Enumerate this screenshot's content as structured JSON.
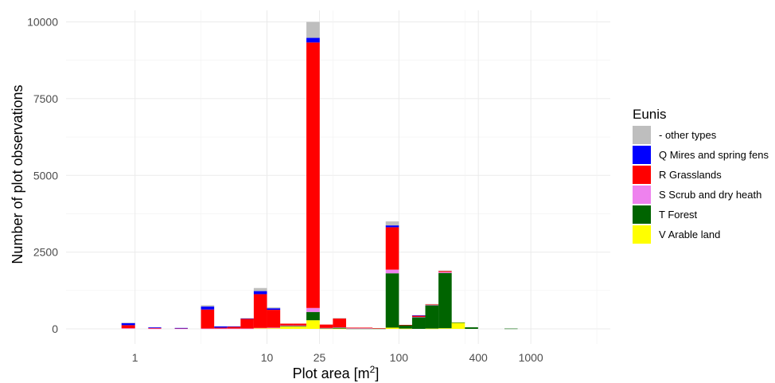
{
  "chart_data": {
    "type": "bar",
    "stacked": true,
    "x_scale": "log10",
    "xlabel": "Plot area [m",
    "xlabel_sup": "2",
    "xlabel_end": "]",
    "ylabel": "Number of plot observations",
    "xlim": [
      0.3,
      4000
    ],
    "ylim": [
      0,
      10000
    ],
    "x_ticks": [
      {
        "value": 1,
        "label": "1"
      },
      {
        "value": 10,
        "label": "10"
      },
      {
        "value": 25,
        "label": "25"
      },
      {
        "value": 100,
        "label": "100"
      },
      {
        "value": 400,
        "label": "400"
      },
      {
        "value": 1000,
        "label": "1000"
      }
    ],
    "x_minor_ticks": [
      3.16,
      31.6,
      316,
      3162
    ],
    "y_ticks": [
      {
        "value": 0,
        "label": "0"
      },
      {
        "value": 2500,
        "label": "2500"
      },
      {
        "value": 5000,
        "label": "5000"
      },
      {
        "value": 7500,
        "label": "7500"
      },
      {
        "value": 10000,
        "label": "10000"
      }
    ],
    "grid": true,
    "legend_position": "right",
    "legend_title": "Eunis",
    "series": [
      {
        "name": "- other types",
        "color": "#bebebe"
      },
      {
        "name": "Q Mires and spring fens",
        "color": "#0000ff"
      },
      {
        "name": "R Grasslands",
        "color": "#ff0000"
      },
      {
        "name": "S Scrub and dry heath",
        "color": "#ee82ee"
      },
      {
        "name": "T Forest",
        "color": "#006400"
      },
      {
        "name": "V Arable land",
        "color": "#ffff00"
      }
    ],
    "stack_order_bottom_to_top": [
      "V Arable land",
      "T Forest",
      "S Scrub and dry heath",
      "R Grasslands",
      "Q Mires and spring fens",
      "- other types"
    ],
    "bars": [
      {
        "x_from": 0.79,
        "x_to": 1.0,
        "values": {
          "V Arable land": 0,
          "T Forest": 0,
          "S Scrub and dry heath": 20,
          "R Grasslands": 100,
          "Q Mires and spring fens": 70,
          "- other types": 10
        }
      },
      {
        "x_from": 1.26,
        "x_to": 1.58,
        "values": {
          "V Arable land": 0,
          "T Forest": 0,
          "S Scrub and dry heath": 10,
          "R Grasslands": 20,
          "Q Mires and spring fens": 20,
          "- other types": 0
        }
      },
      {
        "x_from": 2.0,
        "x_to": 2.51,
        "values": {
          "V Arable land": 0,
          "T Forest": 0,
          "S Scrub and dry heath": 10,
          "R Grasslands": 10,
          "Q Mires and spring fens": 10,
          "- other types": 0
        }
      },
      {
        "x_from": 3.16,
        "x_to": 3.98,
        "values": {
          "V Arable land": 0,
          "T Forest": 0,
          "S Scrub and dry heath": 10,
          "R Grasslands": 620,
          "Q Mires and spring fens": 100,
          "- other types": 40
        }
      },
      {
        "x_from": 3.98,
        "x_to": 5.01,
        "values": {
          "V Arable land": 0,
          "T Forest": 0,
          "S Scrub and dry heath": 10,
          "R Grasslands": 30,
          "Q Mires and spring fens": 40,
          "- other types": 0
        }
      },
      {
        "x_from": 5.01,
        "x_to": 6.31,
        "values": {
          "V Arable land": 0,
          "T Forest": 0,
          "S Scrub and dry heath": 10,
          "R Grasslands": 60,
          "Q Mires and spring fens": 10,
          "- other types": 0
        }
      },
      {
        "x_from": 6.31,
        "x_to": 7.94,
        "values": {
          "V Arable land": 0,
          "T Forest": 0,
          "S Scrub and dry heath": 10,
          "R Grasslands": 320,
          "Q Mires and spring fens": 10,
          "- other types": 10
        }
      },
      {
        "x_from": 7.94,
        "x_to": 10.0,
        "values": {
          "V Arable land": 20,
          "T Forest": 0,
          "S Scrub and dry heath": 10,
          "R Grasslands": 1100,
          "Q Mires and spring fens": 100,
          "- other types": 100
        }
      },
      {
        "x_from": 10.0,
        "x_to": 12.6,
        "values": {
          "V Arable land": 20,
          "T Forest": 0,
          "S Scrub and dry heath": 20,
          "R Grasslands": 580,
          "Q Mires and spring fens": 50,
          "- other types": 30
        }
      },
      {
        "x_from": 12.6,
        "x_to": 15.8,
        "values": {
          "V Arable land": 80,
          "T Forest": 10,
          "S Scrub and dry heath": 20,
          "R Grasslands": 60,
          "Q Mires and spring fens": 0,
          "- other types": 0
        }
      },
      {
        "x_from": 15.8,
        "x_to": 19.9,
        "values": {
          "V Arable land": 80,
          "T Forest": 10,
          "S Scrub and dry heath": 20,
          "R Grasslands": 60,
          "Q Mires and spring fens": 0,
          "- other types": 0
        }
      },
      {
        "x_from": 19.9,
        "x_to": 25.1,
        "values": {
          "V Arable land": 280,
          "T Forest": 270,
          "S Scrub and dry heath": 130,
          "R Grasslands": 8650,
          "Q Mires and spring fens": 150,
          "- other types": 520
        }
      },
      {
        "x_from": 25.1,
        "x_to": 31.6,
        "values": {
          "V Arable land": 10,
          "T Forest": 10,
          "S Scrub and dry heath": 10,
          "R Grasslands": 110,
          "Q Mires and spring fens": 0,
          "- other types": 0
        }
      },
      {
        "x_from": 31.6,
        "x_to": 39.8,
        "values": {
          "V Arable land": 10,
          "T Forest": 30,
          "S Scrub and dry heath": 10,
          "R Grasslands": 290,
          "Q Mires and spring fens": 0,
          "- other types": 10
        }
      },
      {
        "x_from": 39.8,
        "x_to": 50.1,
        "values": {
          "V Arable land": 0,
          "T Forest": 10,
          "S Scrub and dry heath": 10,
          "R Grasslands": 20,
          "Q Mires and spring fens": 0,
          "- other types": 0
        }
      },
      {
        "x_from": 50.1,
        "x_to": 63.1,
        "values": {
          "V Arable land": 0,
          "T Forest": 10,
          "S Scrub and dry heath": 10,
          "R Grasslands": 20,
          "Q Mires and spring fens": 0,
          "- other types": 0
        }
      },
      {
        "x_from": 63.1,
        "x_to": 79.4,
        "values": {
          "V Arable land": 0,
          "T Forest": 10,
          "S Scrub and dry heath": 0,
          "R Grasslands": 10,
          "Q Mires and spring fens": 0,
          "- other types": 0
        }
      },
      {
        "x_from": 79.4,
        "x_to": 100.0,
        "values": {
          "V Arable land": 40,
          "T Forest": 1770,
          "S Scrub and dry heath": 120,
          "R Grasslands": 1380,
          "Q Mires and spring fens": 60,
          "- other types": 130
        }
      },
      {
        "x_from": 100.0,
        "x_to": 125.9,
        "values": {
          "V Arable land": 10,
          "T Forest": 110,
          "S Scrub and dry heath": 0,
          "R Grasslands": 10,
          "Q Mires and spring fens": 0,
          "- other types": 0
        }
      },
      {
        "x_from": 125.9,
        "x_to": 158.5,
        "values": {
          "V Arable land": 0,
          "T Forest": 380,
          "S Scrub and dry heath": 10,
          "R Grasslands": 40,
          "Q Mires and spring fens": 10,
          "- other types": 0
        }
      },
      {
        "x_from": 158.5,
        "x_to": 199.5,
        "values": {
          "V Arable land": 10,
          "T Forest": 760,
          "S Scrub and dry heath": 10,
          "R Grasslands": 20,
          "Q Mires and spring fens": 0,
          "- other types": 10
        }
      },
      {
        "x_from": 199.5,
        "x_to": 251.2,
        "values": {
          "V Arable land": 20,
          "T Forest": 1800,
          "S Scrub and dry heath": 30,
          "R Grasslands": 30,
          "Q Mires and spring fens": 0,
          "- other types": 20
        }
      },
      {
        "x_from": 251.2,
        "x_to": 316.2,
        "values": {
          "V Arable land": 200,
          "T Forest": 10,
          "S Scrub and dry heath": 0,
          "R Grasslands": 0,
          "Q Mires and spring fens": 0,
          "- other types": 0
        }
      },
      {
        "x_from": 316.2,
        "x_to": 398.1,
        "values": {
          "V Arable land": 0,
          "T Forest": 50,
          "S Scrub and dry heath": 0,
          "R Grasslands": 0,
          "Q Mires and spring fens": 0,
          "- other types": 0
        }
      },
      {
        "x_from": 631,
        "x_to": 794,
        "values": {
          "V Arable land": 0,
          "T Forest": 10,
          "S Scrub and dry heath": 0,
          "R Grasslands": 0,
          "Q Mires and spring fens": 0,
          "- other types": 0
        }
      }
    ]
  }
}
